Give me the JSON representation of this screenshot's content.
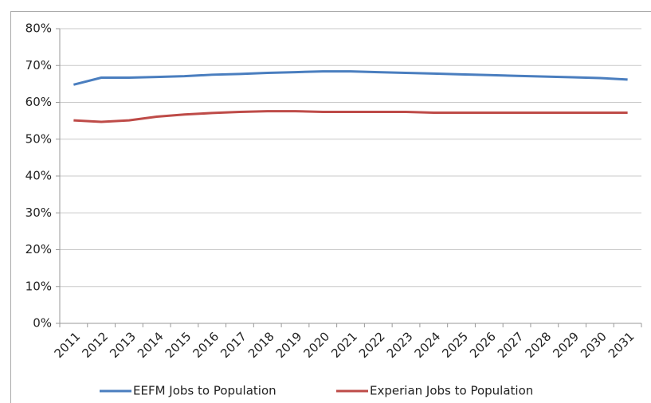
{
  "chart_data": {
    "type": "line",
    "categories": [
      "2011",
      "2012",
      "2013",
      "2014",
      "2015",
      "2016",
      "2017",
      "2018",
      "2019",
      "2020",
      "2021",
      "2022",
      "2023",
      "2024",
      "2025",
      "2026",
      "2027",
      "2028",
      "2029",
      "2030",
      "2031"
    ],
    "series": [
      {
        "name": "EEFM Jobs to Population",
        "color": "#4a7ebf",
        "values": [
          64.8,
          66.7,
          66.7,
          66.9,
          67.1,
          67.5,
          67.7,
          68.0,
          68.2,
          68.4,
          68.4,
          68.2,
          68.0,
          67.8,
          67.6,
          67.4,
          67.2,
          67.0,
          66.8,
          66.6,
          66.2
        ]
      },
      {
        "name": "Experian Jobs to Population",
        "color": "#be4b48",
        "values": [
          55.1,
          54.7,
          55.1,
          56.1,
          56.7,
          57.1,
          57.4,
          57.6,
          57.6,
          57.4,
          57.4,
          57.4,
          57.4,
          57.2,
          57.2,
          57.2,
          57.2,
          57.2,
          57.2,
          57.2,
          57.2
        ]
      }
    ],
    "ylim": [
      0,
      80
    ],
    "yticks": [
      {
        "value": 0,
        "label": "0%"
      },
      {
        "value": 10,
        "label": "10%"
      },
      {
        "value": 20,
        "label": "20%"
      },
      {
        "value": 30,
        "label": "30%"
      },
      {
        "value": 40,
        "label": "40%"
      },
      {
        "value": 50,
        "label": "50%"
      },
      {
        "value": 60,
        "label": "60%"
      },
      {
        "value": 70,
        "label": "70%"
      },
      {
        "value": 80,
        "label": "80%"
      }
    ],
    "grid": true,
    "legend": "bottom"
  }
}
